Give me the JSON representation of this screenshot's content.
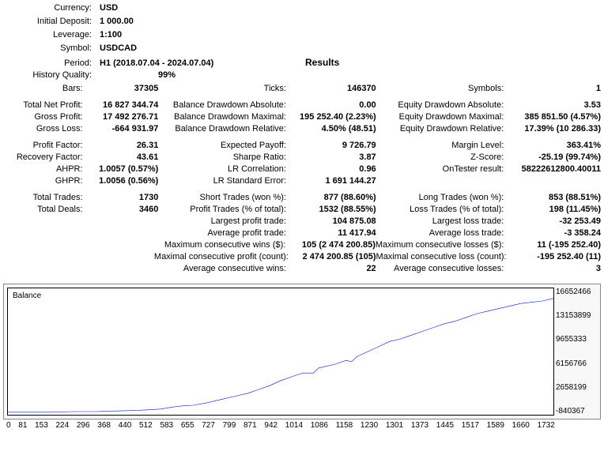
{
  "header": {
    "currency_lbl": "Currency:",
    "currency_val": "USD",
    "deposit_lbl": "Initial Deposit:",
    "deposit_val": "1 000.00",
    "leverage_lbl": "Leverage:",
    "leverage_val": "1:100",
    "symbol_lbl": "Symbol:",
    "symbol_val": "USDCAD",
    "period_lbl": "Period:",
    "period_val": "H1 (2018.07.04 - 2024.07.04)",
    "results_title": "Results",
    "histq_lbl": "History Quality:",
    "histq_val": "99%",
    "bars_lbl": "Bars:",
    "bars_val": "37305",
    "ticks_lbl": "Ticks:",
    "ticks_val": "146370",
    "symbols_lbl": "Symbols:",
    "symbols_val": "1"
  },
  "col_widths": {
    "l1": 112,
    "v1": 100,
    "l2": 180,
    "v2": 120,
    "l3": 180,
    "v3": 130
  },
  "stats": [
    [
      [
        "Total Net Profit:",
        "16 827 344.74"
      ],
      [
        "Balance Drawdown Absolute:",
        "0.00"
      ],
      [
        "Equity Drawdown Absolute:",
        "3.53"
      ]
    ],
    [
      [
        "Gross Profit:",
        "17 492 276.71"
      ],
      [
        "Balance Drawdown Maximal:",
        "195 252.40 (2.23%)"
      ],
      [
        "Equity Drawdown Maximal:",
        "385 851.50 (4.57%)"
      ]
    ],
    [
      [
        "Gross Loss:",
        "-664 931.97"
      ],
      [
        "Balance Drawdown Relative:",
        "4.50% (48.51)"
      ],
      [
        "Equity Drawdown Relative:",
        "17.39% (10 286.33)"
      ]
    ],
    "gap",
    [
      [
        "Profit Factor:",
        "26.31"
      ],
      [
        "Expected Payoff:",
        "9 726.79"
      ],
      [
        "Margin Level:",
        "363.41%"
      ]
    ],
    [
      [
        "Recovery Factor:",
        "43.61"
      ],
      [
        "Sharpe Ratio:",
        "3.87"
      ],
      [
        "Z-Score:",
        "-25.19 (99.74%)"
      ]
    ],
    [
      [
        "AHPR:",
        "1.0057 (0.57%)"
      ],
      [
        "LR Correlation:",
        "0.96"
      ],
      [
        "OnTester result:",
        "58222612800.40011"
      ]
    ],
    [
      [
        "GHPR:",
        "1.0056 (0.56%)"
      ],
      [
        "LR Standard Error:",
        "1 691 144.27"
      ],
      [
        "",
        ""
      ]
    ],
    "gap",
    [
      [
        "Total Trades:",
        "1730"
      ],
      [
        "Short Trades (won %):",
        "877 (88.60%)"
      ],
      [
        "Long Trades (won %):",
        "853 (88.51%)"
      ]
    ],
    [
      [
        "Total Deals:",
        "3460"
      ],
      [
        "Profit Trades (% of total):",
        "1532 (88.55%)"
      ],
      [
        "Loss Trades (% of total):",
        "198 (11.45%)"
      ]
    ],
    [
      [
        "",
        ""
      ],
      [
        "Largest profit trade:",
        "104 875.08"
      ],
      [
        "Largest loss trade:",
        "-32 253.49"
      ]
    ],
    [
      [
        "",
        ""
      ],
      [
        "Average profit trade:",
        "11 417.94"
      ],
      [
        "Average loss trade:",
        "-3 358.24"
      ]
    ],
    [
      [
        "",
        ""
      ],
      [
        "Maximum consecutive wins ($):",
        "105 (2 474 200.85)"
      ],
      [
        "Maximum consecutive losses ($):",
        "11 (-195 252.40)"
      ]
    ],
    [
      [
        "",
        ""
      ],
      [
        "Maximal consecutive profit (count):",
        "2 474 200.85 (105)"
      ],
      [
        "Maximal consecutive loss (count):",
        "-195 252.40 (11)"
      ]
    ],
    [
      [
        "",
        ""
      ],
      [
        "Average consecutive wins:",
        "22"
      ],
      [
        "Average consecutive losses:",
        "3"
      ]
    ]
  ],
  "chart": {
    "title": "Balance",
    "line_color": "#0018c8",
    "background": "#ffffff",
    "y_ticks": [
      "16652466",
      "13153899",
      "9655333",
      "6156766",
      "2658199",
      "-840367"
    ],
    "x_ticks": [
      "0",
      "81",
      "153",
      "224",
      "296",
      "368",
      "440",
      "512",
      "583",
      "655",
      "727",
      "799",
      "871",
      "942",
      "1014",
      "1086",
      "1158",
      "1230",
      "1301",
      "1373",
      "1445",
      "1517",
      "1589",
      "1660",
      "1732"
    ],
    "points": [
      [
        0,
        0.98
      ],
      [
        0.04,
        0.98
      ],
      [
        0.08,
        0.98
      ],
      [
        0.12,
        0.975
      ],
      [
        0.16,
        0.975
      ],
      [
        0.2,
        0.97
      ],
      [
        0.24,
        0.965
      ],
      [
        0.28,
        0.955
      ],
      [
        0.3,
        0.94
      ],
      [
        0.32,
        0.93
      ],
      [
        0.34,
        0.925
      ],
      [
        0.36,
        0.91
      ],
      [
        0.38,
        0.89
      ],
      [
        0.4,
        0.87
      ],
      [
        0.42,
        0.85
      ],
      [
        0.44,
        0.83
      ],
      [
        0.46,
        0.8
      ],
      [
        0.48,
        0.77
      ],
      [
        0.5,
        0.73
      ],
      [
        0.52,
        0.7
      ],
      [
        0.54,
        0.67
      ],
      [
        0.56,
        0.67
      ],
      [
        0.57,
        0.63
      ],
      [
        0.58,
        0.62
      ],
      [
        0.6,
        0.6
      ],
      [
        0.62,
        0.57
      ],
      [
        0.63,
        0.58
      ],
      [
        0.64,
        0.54
      ],
      [
        0.66,
        0.5
      ],
      [
        0.68,
        0.46
      ],
      [
        0.7,
        0.42
      ],
      [
        0.72,
        0.4
      ],
      [
        0.74,
        0.37
      ],
      [
        0.76,
        0.34
      ],
      [
        0.78,
        0.31
      ],
      [
        0.8,
        0.28
      ],
      [
        0.82,
        0.26
      ],
      [
        0.84,
        0.23
      ],
      [
        0.86,
        0.2
      ],
      [
        0.88,
        0.18
      ],
      [
        0.9,
        0.16
      ],
      [
        0.92,
        0.14
      ],
      [
        0.94,
        0.12
      ],
      [
        0.96,
        0.11
      ],
      [
        0.98,
        0.1
      ],
      [
        1.0,
        0.08
      ]
    ]
  }
}
